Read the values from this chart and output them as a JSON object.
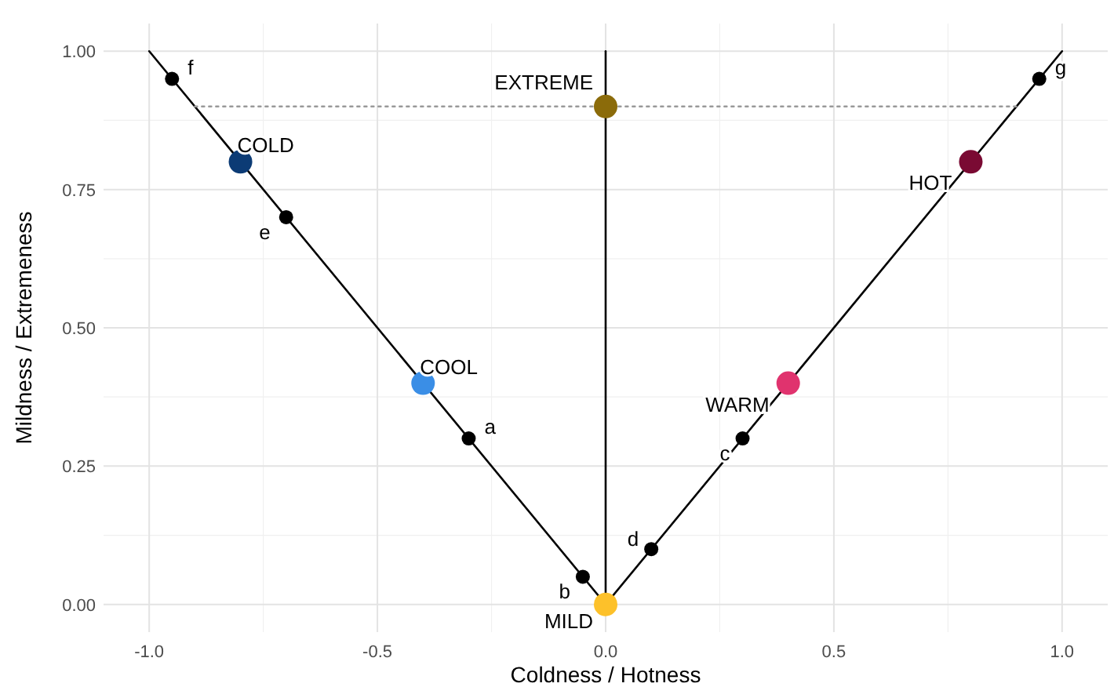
{
  "chart_data": {
    "type": "scatter",
    "xlabel": "Coldness / Hotness",
    "ylabel": "Mildness / Extremeness",
    "xlim": [
      -1.1,
      1.1
    ],
    "ylim": [
      -0.05,
      1.05
    ],
    "xticks": [
      {
        "value": -1,
        "label": "-1.0"
      },
      {
        "value": -0.5,
        "label": "-0.5"
      },
      {
        "value": 0,
        "label": "0.0"
      },
      {
        "value": 0.5,
        "label": "0.5"
      },
      {
        "value": 1,
        "label": "1.0"
      }
    ],
    "yticks": [
      {
        "value": 0,
        "label": "0.00"
      },
      {
        "value": 0.25,
        "label": "0.25"
      },
      {
        "value": 0.5,
        "label": "0.50"
      },
      {
        "value": 0.75,
        "label": "0.75"
      },
      {
        "value": 1,
        "label": "1.00"
      }
    ],
    "grid": true,
    "marker": "circle",
    "series": [
      {
        "type": "line",
        "color": "#000000",
        "x": [
          -1,
          0,
          1
        ],
        "values": [
          1,
          0,
          1
        ],
        "marker": "none"
      },
      {
        "type": "line",
        "color": "#000000",
        "x": [
          0,
          0
        ],
        "values": [
          0,
          1
        ],
        "marker": "none"
      },
      {
        "type": "line",
        "color": "#999999",
        "x": [
          -0.9,
          0.9
        ],
        "values": [
          0.9,
          0.9
        ],
        "line_style": "dotted",
        "marker": "none"
      },
      {
        "color": "#000000",
        "x": [
          -0.3,
          -0.05,
          0.3,
          0.1,
          -0.7,
          -0.95,
          0.95
        ],
        "values": [
          0.3,
          0.05,
          0.3,
          0.1,
          0.7,
          0.95,
          0.95
        ],
        "value_labels": [
          "a",
          "b",
          "c",
          "d",
          "e",
          "f",
          "g"
        ]
      },
      {
        "colors": [
          "#0c3b75",
          "#3a8ee6",
          "#fdc12a",
          "#e0336e",
          "#7a0a33",
          "#8b6b0a"
        ],
        "x": [
          -0.8,
          -0.4,
          0,
          0.4,
          0.8,
          0
        ],
        "values": [
          0.8,
          0.4,
          0,
          0.4,
          0.8,
          0.9
        ],
        "value_labels": [
          "COLD",
          "COOL",
          "MILD",
          "WARM",
          "HOT",
          "EXTREME"
        ]
      }
    ]
  }
}
